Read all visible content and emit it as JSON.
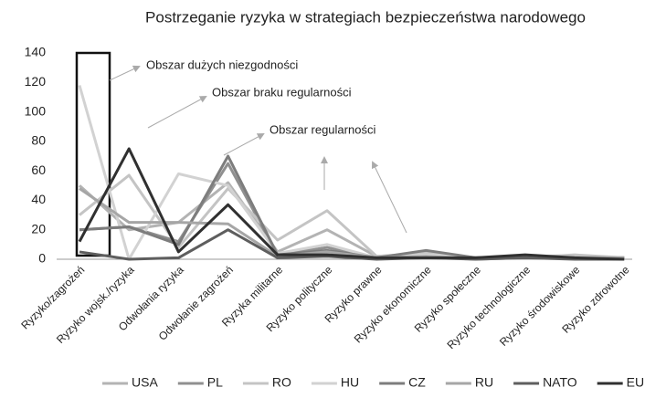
{
  "chart_data": {
    "type": "line",
    "title": "Postrzeganie ryzyka w strategiach bezpieczeństwa narodowego",
    "categories": [
      "Ryzyko/zagrożeń",
      "Ryzyko wojsk./ryzyka",
      "Odwołania ryzyka",
      "Odwołanie zagrożeń",
      "Ryzyka militarne",
      "Ryzyko polityczne",
      "Ryzyko prawne",
      "Ryzyko ekonomiczne",
      "Ryzyko społeczne",
      "Ryzyko technologiczne",
      "Ryzyko środowiskowe",
      "Ryzyko zdrowotne"
    ],
    "series": [
      {
        "name": "USA",
        "color": "#b3b3b3",
        "values": [
          50,
          20,
          25,
          52,
          5,
          20,
          2,
          3,
          1,
          1,
          2,
          1
        ]
      },
      {
        "name": "PL",
        "color": "#909090",
        "values": [
          20,
          22,
          12,
          65,
          3,
          8,
          1,
          5,
          1,
          2,
          1,
          1
        ]
      },
      {
        "name": "RO",
        "color": "#c4c4c4",
        "values": [
          30,
          57,
          8,
          48,
          13,
          33,
          2,
          4,
          1,
          1,
          3,
          1
        ]
      },
      {
        "name": "HU",
        "color": "#d2d2d2",
        "values": [
          118,
          0,
          58,
          50,
          4,
          10,
          1,
          3,
          1,
          1,
          1,
          1
        ]
      },
      {
        "name": "CZ",
        "color": "#7d7d7d",
        "values": [
          20,
          22,
          10,
          70,
          3,
          6,
          1,
          6,
          1,
          2,
          1,
          1
        ]
      },
      {
        "name": "RU",
        "color": "#a6a6a6",
        "values": [
          48,
          25,
          25,
          24,
          2,
          5,
          1,
          2,
          0,
          1,
          1,
          1
        ]
      },
      {
        "name": "NATO",
        "color": "#5e5e5e",
        "values": [
          5,
          0,
          1,
          20,
          1,
          2,
          0,
          1,
          0,
          1,
          0,
          0
        ]
      },
      {
        "name": "EU",
        "color": "#303030",
        "values": [
          12,
          75,
          5,
          37,
          3,
          3,
          1,
          1,
          1,
          3,
          1,
          0
        ]
      }
    ],
    "annotations": [
      "Obszar dużych niezgodności",
      "Obszar braku regularności",
      "Obszar regularności"
    ],
    "ylim": [
      0,
      140
    ],
    "yticks": [
      0,
      20,
      40,
      60,
      80,
      100,
      120,
      140
    ],
    "grid": false,
    "legend": "bottom"
  }
}
